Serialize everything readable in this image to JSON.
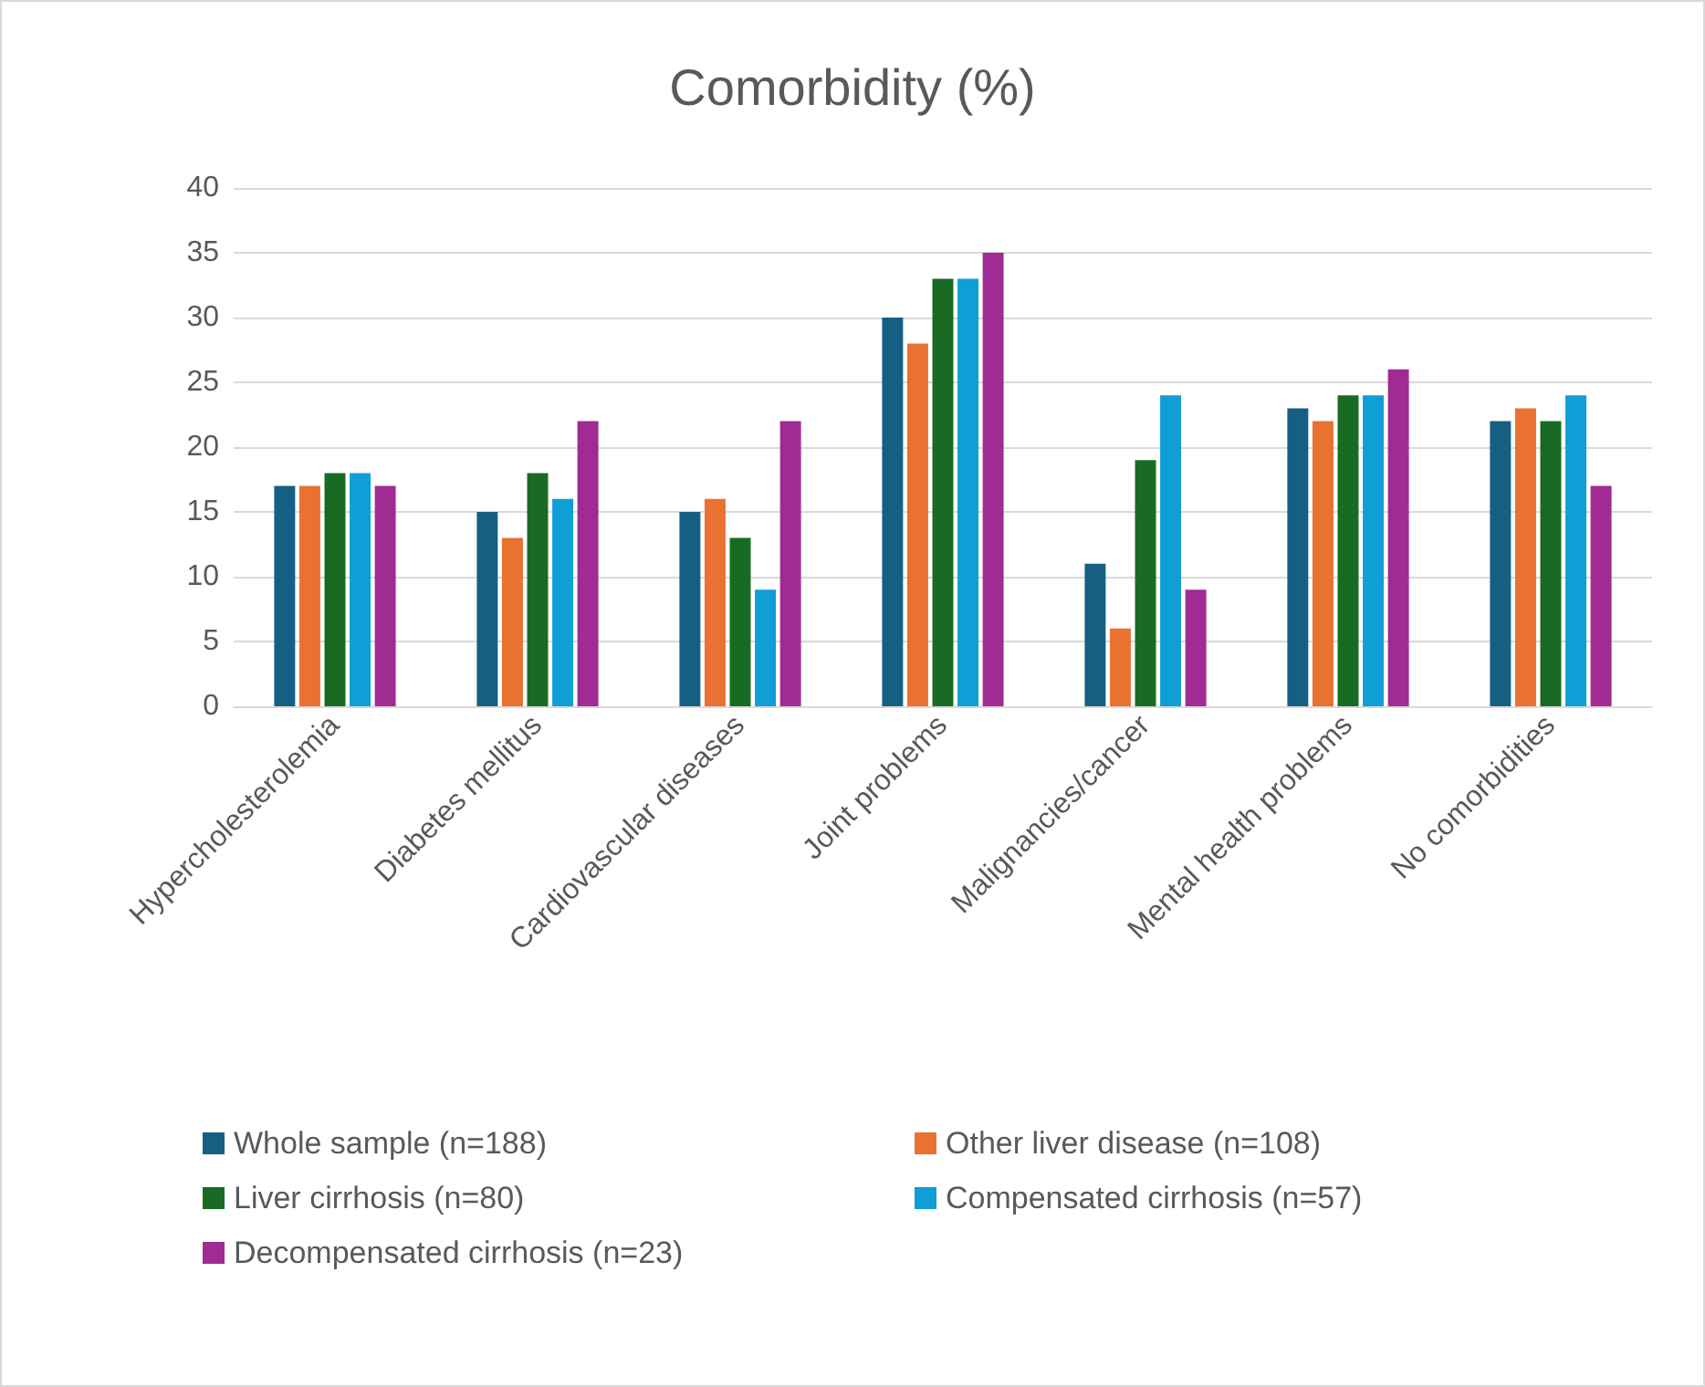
{
  "chart_data": {
    "type": "bar",
    "title": "Comorbidity (%)",
    "categories": [
      "Hypercholesterolemia",
      "Diabetes mellitus",
      "Cardiovascular diseases",
      "Joint problems",
      "Malignancies/cancer",
      "Mental health problems",
      "No comorbidities"
    ],
    "series": [
      {
        "name": "Whole sample (n=188)",
        "color": "#156082",
        "values": [
          17,
          15,
          15,
          30,
          11,
          23,
          22
        ]
      },
      {
        "name": "Other liver disease (n=108)",
        "color": "#e97132",
        "values": [
          17,
          13,
          16,
          28,
          6,
          22,
          23
        ]
      },
      {
        "name": "Liver cirrhosis (n=80)",
        "color": "#196b24",
        "values": [
          18,
          18,
          13,
          33,
          19,
          24,
          22
        ]
      },
      {
        "name": "Compensated cirrhosis (n=57)",
        "color": "#0f9ed5",
        "values": [
          18,
          16,
          9,
          33,
          24,
          24,
          24
        ]
      },
      {
        "name": "Decompensated cirrhosis (n=23)",
        "color": "#a02b93",
        "values": [
          17,
          22,
          22,
          35,
          9,
          26,
          17
        ]
      }
    ],
    "ylim": [
      0,
      40
    ],
    "yticks": [
      0,
      5,
      10,
      15,
      20,
      25,
      30,
      35,
      40
    ],
    "grid": "y",
    "legend": "bottom"
  }
}
